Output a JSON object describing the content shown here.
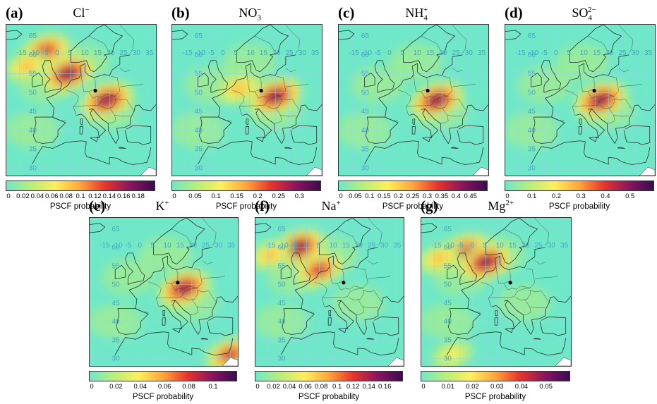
{
  "colorbar_label": "PSCF probability",
  "colors": {
    "scale": [
      "#6fe8c8",
      "#b9ee7a",
      "#ffef5a",
      "#ffa53a",
      "#e8332b",
      "#8a1560",
      "#3c0a50"
    ],
    "grid": "#8fd6ea",
    "latlon_labels": "#3fa8c8",
    "coast": "#303030",
    "receptor": "#000000"
  },
  "map_axes": {
    "lat_labels": [
      "65",
      "60",
      "55",
      "50",
      "45",
      "40",
      "35",
      "30"
    ],
    "lon_labels": [
      "-15",
      "-10",
      "-5",
      "0",
      "5",
      "10",
      "15",
      "20",
      "25",
      "30",
      "35"
    ]
  },
  "panels": [
    {
      "letter": "(a)",
      "ion_base": "Cl",
      "ion_sub": "",
      "ion_sup": "−",
      "ticks": [
        "0",
        "0.02",
        "0.04",
        "0.06",
        "0.08",
        "0.1",
        "0.12",
        "0.14",
        "0.16",
        "0.18"
      ],
      "hotspots": [
        {
          "lat": 61,
          "lon": -5,
          "level": 0.9
        },
        {
          "lat": 55,
          "lon": 4,
          "level": 1.0
        },
        {
          "lat": 48,
          "lon": 19,
          "level": 1.0
        },
        {
          "lat": 57,
          "lon": -12,
          "level": 0.5
        }
      ]
    },
    {
      "letter": "(b)",
      "ion_base": "NO",
      "ion_sub": "3",
      "ion_sup": "−",
      "ticks": [
        "0",
        "0.05",
        "0.1",
        "0.15",
        "0.2",
        "0.25",
        "0.3"
      ],
      "hotspots": [
        {
          "lat": 49,
          "lon": 20,
          "level": 1.0
        },
        {
          "lat": 51,
          "lon": 6,
          "level": 0.55
        }
      ]
    },
    {
      "letter": "(c)",
      "ion_base": "NH",
      "ion_sub": "4",
      "ion_sup": "+",
      "ticks": [
        "0",
        "0.05",
        "0.1",
        "0.15",
        "0.2",
        "0.25",
        "0.3",
        "0.35",
        "0.4",
        "0.45"
      ],
      "hotspots": [
        {
          "lat": 48,
          "lon": 18,
          "level": 1.0
        }
      ]
    },
    {
      "letter": "(d)",
      "ion_base": "SO",
      "ion_sub": "4",
      "ion_sup": "2−",
      "ticks": [
        "0",
        "0.1",
        "0.2",
        "0.3",
        "0.4",
        "0.5"
      ],
      "hotspots": [
        {
          "lat": 48,
          "lon": 17,
          "level": 1.0
        }
      ]
    },
    {
      "letter": "(e)",
      "ion_base": "K",
      "ion_sub": "",
      "ion_sup": "+",
      "ticks": [
        "0",
        "0.02",
        "0.04",
        "0.06",
        "0.08",
        "0.1"
      ],
      "hotspots": [
        {
          "lat": 49,
          "lon": 17,
          "level": 1.0
        },
        {
          "lat": 31,
          "lon": 35,
          "level": 0.8
        }
      ]
    },
    {
      "letter": "(f)",
      "ion_base": "Na",
      "ion_sub": "",
      "ion_sup": "+",
      "ticks": [
        "0",
        "0.02",
        "0.04",
        "0.06",
        "0.08",
        "0.1",
        "0.12",
        "0.14",
        "0.16"
      ],
      "hotspots": [
        {
          "lat": 60,
          "lon": -3,
          "level": 1.0
        },
        {
          "lat": 54,
          "lon": 5,
          "level": 0.8
        },
        {
          "lat": 58,
          "lon": -14,
          "level": 0.5
        }
      ]
    },
    {
      "letter": "(g)",
      "ion_base": "Mg",
      "ion_sub": "",
      "ion_sup": "2+",
      "ticks": [
        "0",
        "0.01",
        "0.02",
        "0.03",
        "0.04",
        "0.05"
      ],
      "hotspots": [
        {
          "lat": 59,
          "lon": -3,
          "level": 0.9
        },
        {
          "lat": 56,
          "lon": 5,
          "level": 1.0
        },
        {
          "lat": 57,
          "lon": -13,
          "level": 0.5
        },
        {
          "lat": 31,
          "lon": -8,
          "level": 0.4
        }
      ]
    }
  ]
}
